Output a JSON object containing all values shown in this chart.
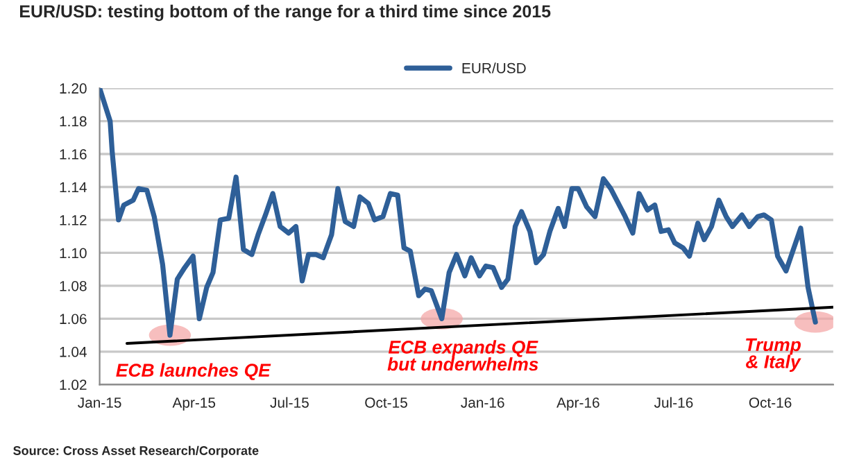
{
  "chart_data": {
    "type": "line",
    "title": "EUR/USD: testing bottom of the range for a third time since 2015",
    "series": [
      {
        "name": "EUR/USD",
        "color": "#2e5f98",
        "x": [
          "2015-01-01",
          "2015-01-11",
          "2015-01-13",
          "2015-01-19",
          "2015-01-24",
          "2015-02-02",
          "2015-02-07",
          "2015-02-15",
          "2015-02-22",
          "2015-03-02",
          "2015-03-09",
          "2015-03-16",
          "2015-03-23",
          "2015-03-31",
          "2015-04-06",
          "2015-04-13",
          "2015-04-19",
          "2015-04-26",
          "2015-05-04",
          "2015-05-11",
          "2015-05-18",
          "2015-05-26",
          "2015-06-01",
          "2015-06-08",
          "2015-06-15",
          "2015-06-22",
          "2015-06-30",
          "2015-07-07",
          "2015-07-13",
          "2015-07-19",
          "2015-07-26",
          "2015-08-02",
          "2015-08-10",
          "2015-08-16",
          "2015-08-23",
          "2015-08-31",
          "2015-09-06",
          "2015-09-14",
          "2015-09-20",
          "2015-09-28",
          "2015-10-05",
          "2015-10-12",
          "2015-10-18",
          "2015-10-24",
          "2015-11-01",
          "2015-11-07",
          "2015-11-13",
          "2015-11-23",
          "2015-11-30",
          "2015-12-07",
          "2015-12-15",
          "2015-12-21",
          "2015-12-29",
          "2016-01-04",
          "2016-01-11",
          "2016-01-19",
          "2016-01-25",
          "2016-02-01",
          "2016-02-07",
          "2016-02-15",
          "2016-02-21",
          "2016-02-28",
          "2016-03-05",
          "2016-03-13",
          "2016-03-19",
          "2016-03-26",
          "2016-04-01",
          "2016-04-09",
          "2016-04-17",
          "2016-04-25",
          "2016-05-02",
          "2016-05-15",
          "2016-05-23",
          "2016-05-29",
          "2016-06-06",
          "2016-06-13",
          "2016-06-19",
          "2016-06-26",
          "2016-07-02",
          "2016-07-10",
          "2016-07-16",
          "2016-07-24",
          "2016-07-30",
          "2016-08-06",
          "2016-08-13",
          "2016-08-20",
          "2016-08-26",
          "2016-09-04",
          "2016-09-11",
          "2016-09-19",
          "2016-09-25",
          "2016-10-02",
          "2016-10-08",
          "2016-10-16",
          "2016-10-23",
          "2016-10-30",
          "2016-11-06",
          "2016-11-13"
        ],
        "values": [
          1.2,
          1.18,
          1.161,
          1.12,
          1.129,
          1.132,
          1.139,
          1.138,
          1.122,
          1.093,
          1.05,
          1.084,
          1.091,
          1.098,
          1.06,
          1.079,
          1.088,
          1.12,
          1.121,
          1.146,
          1.102,
          1.099,
          1.111,
          1.123,
          1.136,
          1.116,
          1.112,
          1.116,
          1.083,
          1.099,
          1.099,
          1.097,
          1.111,
          1.139,
          1.119,
          1.116,
          1.134,
          1.13,
          1.12,
          1.122,
          1.136,
          1.135,
          1.103,
          1.101,
          1.074,
          1.078,
          1.077,
          1.06,
          1.088,
          1.099,
          1.086,
          1.097,
          1.086,
          1.092,
          1.091,
          1.079,
          1.084,
          1.116,
          1.125,
          1.113,
          1.094,
          1.099,
          1.113,
          1.127,
          1.116,
          1.139,
          1.139,
          1.128,
          1.122,
          1.145,
          1.139,
          1.123,
          1.112,
          1.136,
          1.126,
          1.129,
          1.113,
          1.114,
          1.106,
          1.103,
          1.098,
          1.118,
          1.108,
          1.116,
          1.132,
          1.122,
          1.116,
          1.123,
          1.116,
          1.122,
          1.123,
          1.12,
          1.098,
          1.089,
          1.102,
          1.115,
          1.079,
          1.058
        ]
      },
      {
        "type": "line",
        "color": "#000000",
        "x": [
          "2015-01-27",
          "2016-11-30"
        ],
        "values": [
          1.045,
          1.067
        ]
      }
    ],
    "xlim": [
      "2015-01-01",
      "2016-11-30"
    ],
    "xticks": [
      {
        "value": "2015-01-01",
        "label": "Jan-15"
      },
      {
        "value": "2015-04-01",
        "label": "Apr-15"
      },
      {
        "value": "2015-07-01",
        "label": "Jul-15"
      },
      {
        "value": "2015-10-01",
        "label": "Oct-15"
      },
      {
        "value": "2016-01-01",
        "label": "Jan-16"
      },
      {
        "value": "2016-04-01",
        "label": "Apr-16"
      },
      {
        "value": "2016-07-01",
        "label": "Jul-16"
      },
      {
        "value": "2016-10-01",
        "label": "Oct-16"
      }
    ],
    "ylim": [
      1.02,
      1.2
    ],
    "yticks": [
      {
        "value": 1.02,
        "label": "1.02"
      },
      {
        "value": 1.04,
        "label": "1.04"
      },
      {
        "value": 1.06,
        "label": "1.06"
      },
      {
        "value": 1.08,
        "label": "1.08"
      },
      {
        "value": 1.1,
        "label": "1.10"
      },
      {
        "value": 1.12,
        "label": "1.12"
      },
      {
        "value": 1.14,
        "label": "1.14"
      },
      {
        "value": 1.16,
        "label": "1.16"
      },
      {
        "value": 1.18,
        "label": "1.18"
      },
      {
        "value": 1.2,
        "label": "1.20"
      }
    ],
    "grid": "y",
    "legend": "top",
    "marker": "none",
    "line_style": "solid",
    "annotations": [
      {
        "text": "ECB launches QE",
        "x": "2015-03-09",
        "y": 1.05
      },
      {
        "text": "ECB expands QE\nbut underwhelms",
        "x": "2015-11-23",
        "y": 1.06
      },
      {
        "text": "Trump\n& Italy",
        "x": "2016-11-13",
        "y": 1.058
      },
      "Source: Cross Asset Research/Corporate"
    ]
  }
}
